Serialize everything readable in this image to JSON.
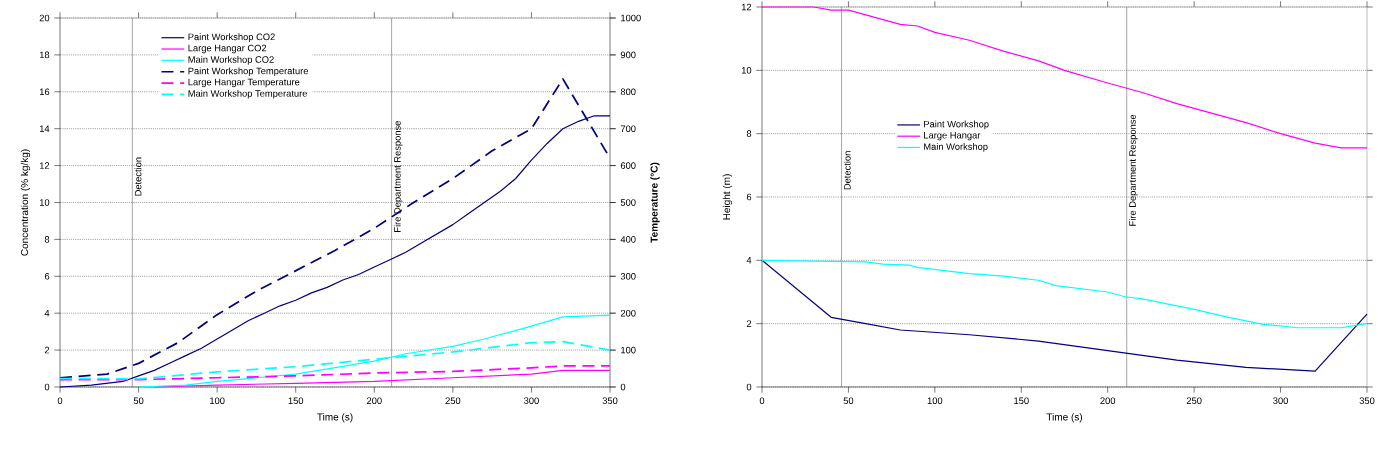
{
  "chart_data": [
    {
      "type": "line",
      "xlabel": "Time (s)",
      "ylabel": "Concentration (% kg/kg)",
      "y2label": "Temperature (°C)",
      "xlim": [
        0,
        350
      ],
      "xticks": [
        0,
        50,
        100,
        150,
        200,
        250,
        300,
        350
      ],
      "ylim": [
        0,
        20
      ],
      "yticks": [
        0,
        2,
        4,
        6,
        8,
        10,
        12,
        14,
        16,
        18,
        20
      ],
      "y2lim": [
        0,
        1000
      ],
      "y2ticks": [
        0,
        100,
        200,
        300,
        400,
        500,
        600,
        700,
        800,
        900,
        1000
      ],
      "grid": "y",
      "legend": "top",
      "ref_lines": [
        {
          "axis": "x",
          "value": 46,
          "label": "Detection"
        },
        {
          "axis": "x",
          "value": 211,
          "label": "Fire Department Response"
        }
      ],
      "series": [
        {
          "name": "Paint Workshop CO2",
          "color": "#000080",
          "line_style": "solid",
          "x": [
            0,
            20,
            40,
            50,
            60,
            70,
            80,
            90,
            100,
            110,
            120,
            130,
            140,
            150,
            160,
            170,
            180,
            190,
            200,
            210,
            220,
            230,
            240,
            250,
            260,
            270,
            280,
            290,
            300,
            310,
            320,
            330,
            340,
            350
          ],
          "values": [
            0,
            0.1,
            0.3,
            0.6,
            0.9,
            1.3,
            1.7,
            2.1,
            2.6,
            3.1,
            3.6,
            4.0,
            4.4,
            4.7,
            5.1,
            5.4,
            5.8,
            6.1,
            6.5,
            6.9,
            7.3,
            7.8,
            8.3,
            8.8,
            9.4,
            10.0,
            10.6,
            11.3,
            12.3,
            13.2,
            14.0,
            14.4,
            14.7,
            14.7
          ]
        },
        {
          "name": "Large Hangar CO2",
          "color": "#ff00ff",
          "line_style": "solid",
          "x": [
            60,
            100,
            150,
            200,
            250,
            300,
            320,
            350
          ],
          "values": [
            0,
            0.1,
            0.2,
            0.3,
            0.5,
            0.7,
            0.9,
            0.9
          ]
        },
        {
          "name": "Main Workshop CO2",
          "color": "#00ffff",
          "line_style": "solid",
          "x": [
            50,
            80,
            100,
            150,
            200,
            220,
            250,
            270,
            300,
            320,
            350
          ],
          "values": [
            0,
            0.1,
            0.3,
            0.7,
            1.4,
            1.8,
            2.2,
            2.6,
            3.3,
            3.8,
            3.9
          ]
        },
        {
          "name": "Paint Workshop Temperature",
          "color": "#000080",
          "line_style": "dashed",
          "axis": "y2",
          "x": [
            0,
            30,
            50,
            75,
            100,
            125,
            150,
            175,
            200,
            225,
            250,
            275,
            300,
            320,
            350
          ],
          "values": [
            25,
            35,
            64,
            120,
            196,
            260,
            315,
            370,
            430,
            500,
            565,
            640,
            700,
            835,
            620
          ]
        },
        {
          "name": "Large Hangar Temperature",
          "color": "#ff00ff",
          "line_style": "dashed",
          "axis": "y2",
          "x": [
            0,
            50,
            100,
            150,
            200,
            250,
            300,
            320,
            350
          ],
          "values": [
            20,
            20,
            25,
            30,
            38,
            42,
            52,
            57,
            57
          ]
        },
        {
          "name": "Main Workshop Temperature",
          "color": "#00ffff",
          "line_style": "dashed",
          "axis": "y2",
          "x": [
            0,
            50,
            100,
            150,
            200,
            250,
            300,
            320,
            350
          ],
          "values": [
            23,
            22,
            41,
            55,
            75,
            95,
            120,
            123,
            100
          ]
        }
      ]
    },
    {
      "type": "line",
      "xlabel": "Time (s)",
      "ylabel": "Height (m)",
      "xlim": [
        0,
        350
      ],
      "xticks": [
        0,
        50,
        100,
        150,
        200,
        250,
        300,
        350
      ],
      "ylim": [
        0,
        12
      ],
      "yticks": [
        0,
        2,
        4,
        6,
        8,
        10,
        12
      ],
      "grid": "y",
      "legend": "left",
      "ref_lines": [
        {
          "axis": "x",
          "value": 46,
          "label": "Detection"
        },
        {
          "axis": "x",
          "value": 211,
          "label": "Fire Department Response"
        }
      ],
      "series": [
        {
          "name": "Paint Workshop",
          "color": "#000080",
          "x": [
            0,
            40,
            60,
            80,
            120,
            160,
            200,
            240,
            280,
            320,
            350
          ],
          "values": [
            4,
            2.2,
            2.0,
            1.8,
            1.65,
            1.45,
            1.15,
            0.85,
            0.62,
            0.5,
            2.3
          ]
        },
        {
          "name": "Large Hangar",
          "color": "#ff00ff",
          "x": [
            0,
            30,
            40,
            50,
            60,
            70,
            80,
            90,
            100,
            120,
            140,
            160,
            175,
            200,
            220,
            240,
            260,
            280,
            300,
            320,
            335,
            350
          ],
          "values": [
            12,
            12,
            11.9,
            11.9,
            11.75,
            11.6,
            11.45,
            11.4,
            11.2,
            10.95,
            10.6,
            10.3,
            10.0,
            9.6,
            9.3,
            8.95,
            8.65,
            8.35,
            8.0,
            7.7,
            7.55,
            7.55
          ]
        },
        {
          "name": "Main Workshop",
          "color": "#00ffff",
          "x": [
            0,
            60,
            70,
            85,
            90,
            120,
            140,
            160,
            170,
            200,
            210,
            220,
            250,
            270,
            290,
            310,
            335,
            350
          ],
          "values": [
            4,
            3.95,
            3.88,
            3.85,
            3.78,
            3.58,
            3.5,
            3.37,
            3.2,
            3.0,
            2.85,
            2.78,
            2.45,
            2.2,
            1.98,
            1.87,
            1.87,
            2.0
          ]
        }
      ]
    }
  ]
}
